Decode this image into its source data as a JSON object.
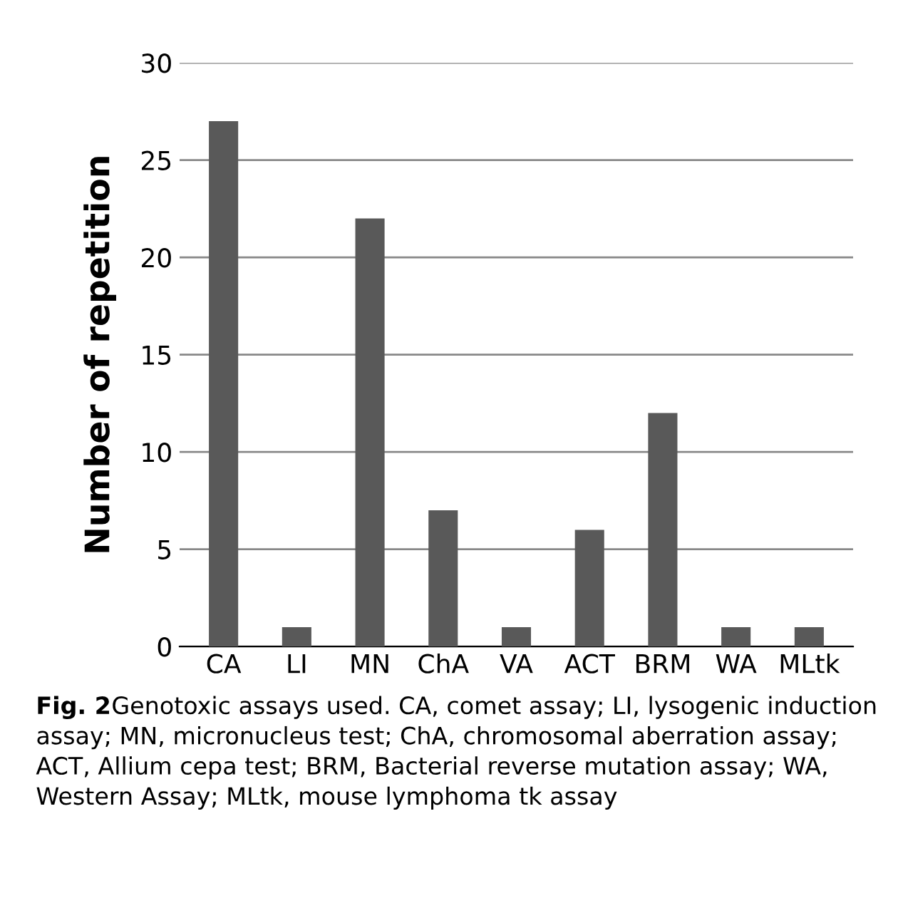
{
  "chart_data": {
    "type": "bar",
    "ylabel": "Number of repetition",
    "categories": [
      "CA",
      "LI",
      "MN",
      "ChA",
      "VA",
      "ACT",
      "BRM",
      "WA",
      "MLtk"
    ],
    "values": [
      27,
      1,
      22,
      7,
      1,
      6,
      12,
      1,
      1
    ],
    "color": "#595959",
    "ylim": [
      0,
      30
    ],
    "yticks": [
      0,
      5,
      10,
      15,
      20,
      25,
      30
    ],
    "grid": "y",
    "annotations": [
      "Fig. 2",
      "Genotoxic assays used. CA, comet assay; LI, lysogenic induction assay; MN, micronucleus test; ChA, chromosomal aberration assay; ACT, Allium cepa test; BRM, Bacterial reverse mutation assay; WA, Western Assay; MLtk, mouse lymphoma tk assay"
    ]
  }
}
